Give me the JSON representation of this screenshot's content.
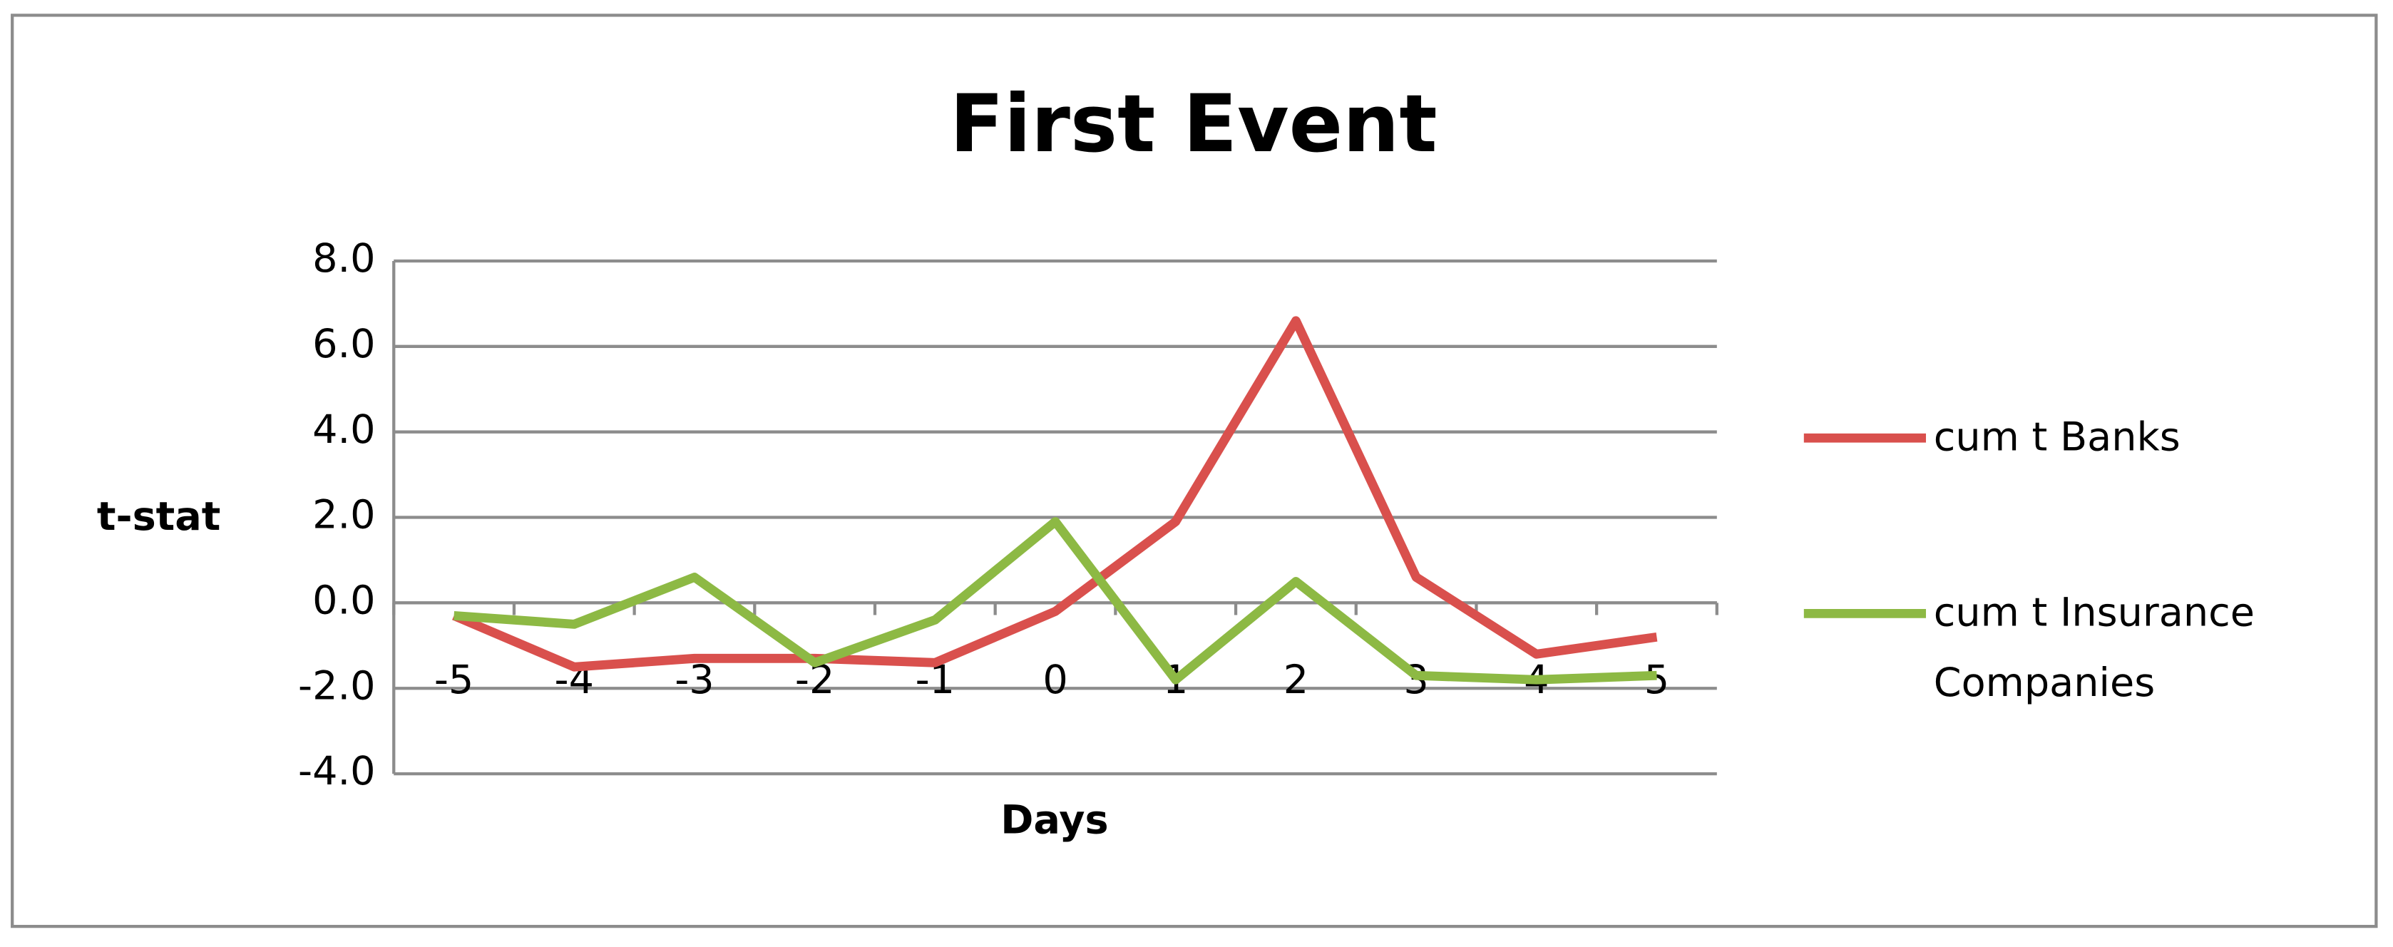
{
  "chart_data": {
    "type": "line",
    "title": "First Event",
    "x_label": "Days",
    "y_label": "t-stat",
    "categories": [
      "-5",
      "-4",
      "-3",
      "-2",
      "-1",
      "0",
      "1",
      "2",
      "3",
      "4",
      "5"
    ],
    "series": [
      {
        "name": "cum t Banks",
        "color": "#d9504d",
        "values": [
          -0.3,
          -1.5,
          -1.3,
          -1.3,
          -1.4,
          -0.2,
          1.9,
          6.6,
          0.6,
          -1.2,
          -0.8
        ]
      },
      {
        "name": "cum t Insurance Companies",
        "color": "#8db944",
        "values": [
          -0.3,
          -0.5,
          0.6,
          -1.4,
          -0.4,
          1.9,
          -1.8,
          0.5,
          -1.7,
          -1.8,
          -1.7
        ]
      }
    ],
    "ylim": [
      -4,
      8
    ],
    "yticks": [
      {
        "value": -4,
        "label": "-4.0"
      },
      {
        "value": -2,
        "label": "-2.0"
      },
      {
        "value": 0,
        "label": "0.0"
      },
      {
        "value": 2,
        "label": "2.0"
      },
      {
        "value": 4,
        "label": "4.0"
      },
      {
        "value": 6,
        "label": "6.0"
      },
      {
        "value": 8,
        "label": "8.0"
      }
    ],
    "grid": true,
    "legend": "right"
  }
}
